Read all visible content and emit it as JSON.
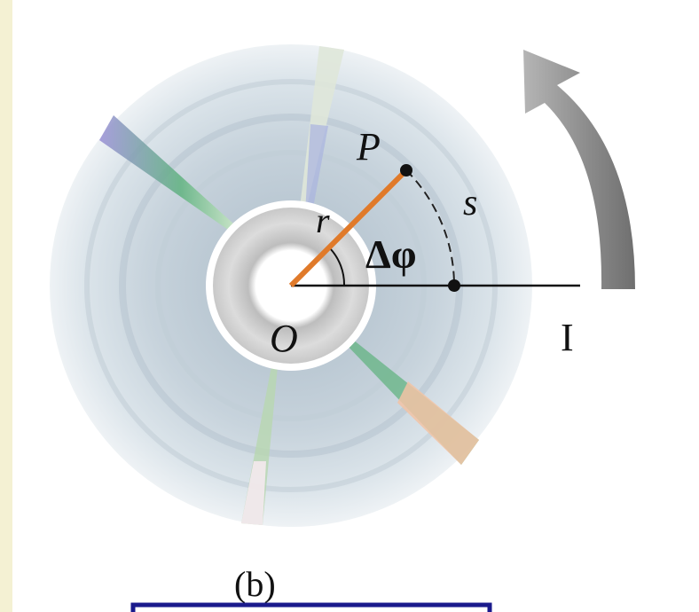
{
  "figure": {
    "caption": "(b)",
    "labels": {
      "point_p": "P",
      "arc_length": "s",
      "radius": "r",
      "angle": "Δφ",
      "origin": "O"
    },
    "colors": {
      "background": "#fbfbf0",
      "left_strip": "#f4f1d3",
      "figure_panel": "#ffffff",
      "radius_line": "#e07a2a",
      "arrow": "#8f8f8f",
      "frame_border": "#1a1a8c"
    },
    "rotation_arrow_icon": "curved-arrow-counterclockwise"
  }
}
